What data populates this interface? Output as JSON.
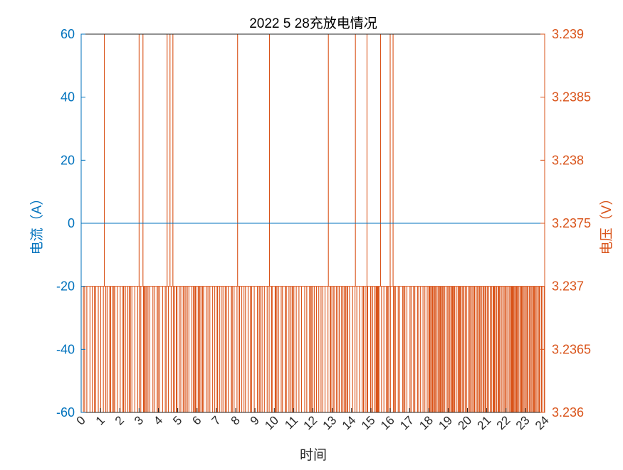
{
  "chart_data": {
    "type": "line",
    "title": "2022   5  28充放电情况",
    "xlabel": "时间",
    "ylabel_left": "电流（A）",
    "ylabel_right": "电压（V）",
    "xlim": [
      0,
      24
    ],
    "ylim_left": [
      -60,
      60
    ],
    "ylim_right": [
      3.236,
      3.239
    ],
    "x_ticks": [
      "0",
      "1",
      "2",
      "3",
      "4",
      "5",
      "6",
      "7",
      "8",
      "9",
      "10",
      "11",
      "12",
      "13",
      "14",
      "15",
      "16",
      "17",
      "18",
      "19",
      "20",
      "21",
      "22",
      "23",
      "24"
    ],
    "y_ticks_left": [
      "-60",
      "-40",
      "-20",
      "0",
      "20",
      "40",
      "60"
    ],
    "y_ticks_right": [
      "3.236",
      "3.2365",
      "3.237",
      "3.2375",
      "3.238",
      "3.2385",
      "3.239"
    ],
    "grid": false,
    "colors": {
      "current": "#0072BD",
      "voltage": "#D95319",
      "axis": "#262626"
    },
    "series": [
      {
        "axis": "left",
        "x": [
          0,
          24
        ],
        "values": [
          0,
          0
        ]
      },
      {
        "axis": "right",
        "baseline": 3.237,
        "low_level": 3.236,
        "high_level": 3.239,
        "spikes_high_x": [
          1.2,
          3.0,
          3.2,
          4.45,
          4.6,
          4.75,
          8.1,
          9.75,
          12.8,
          14.2,
          14.8,
          15.5,
          16.0,
          16.15
        ],
        "dense_low_segments": [
          [
            0.0,
            18.0
          ],
          [
            18.0,
            24.0
          ]
        ],
        "dense_low_density": [
          2.4,
          5.0
        ]
      }
    ]
  }
}
